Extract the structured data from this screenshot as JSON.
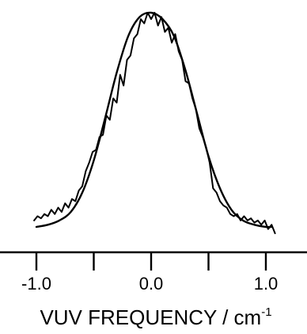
{
  "chart_data": {
    "type": "line",
    "title": "",
    "xlabel": "VUV FREQUENCY / cm",
    "xlabel_superscript": "-1",
    "ylabel": "",
    "xlim": [
      -1.15,
      1.15
    ],
    "ylim": [
      0,
      1.05
    ],
    "xticks": [
      -1.0,
      -0.5,
      0.0,
      0.5,
      1.0
    ],
    "xtick_labels": [
      "-1.0",
      "",
      "0.0",
      "",
      "1.0"
    ],
    "grid": false,
    "legend": "none",
    "series": [
      {
        "style": "smooth",
        "x": [
          -1.0,
          -0.9,
          -0.8,
          -0.7,
          -0.6,
          -0.5,
          -0.4,
          -0.3,
          -0.2,
          -0.1,
          0.0,
          0.1,
          0.2,
          0.3,
          0.4,
          0.5,
          0.6,
          0.7,
          0.8,
          0.9,
          1.0,
          1.05
        ],
        "y": [
          0.0,
          0.01,
          0.03,
          0.07,
          0.16,
          0.31,
          0.51,
          0.72,
          0.89,
          0.98,
          1.0,
          0.97,
          0.89,
          0.73,
          0.53,
          0.33,
          0.18,
          0.08,
          0.03,
          0.01,
          0.0,
          0.0
        ]
      },
      {
        "style": "noisy",
        "x": [
          -1.02,
          -0.99,
          -0.96,
          -0.93,
          -0.9,
          -0.87,
          -0.84,
          -0.81,
          -0.78,
          -0.75,
          -0.72,
          -0.69,
          -0.66,
          -0.63,
          -0.6,
          -0.57,
          -0.54,
          -0.51,
          -0.48,
          -0.45,
          -0.42,
          -0.39,
          -0.36,
          -0.33,
          -0.3,
          -0.27,
          -0.24,
          -0.21,
          -0.18,
          -0.15,
          -0.12,
          -0.09,
          -0.06,
          -0.03,
          0.0,
          0.03,
          0.06,
          0.09,
          0.12,
          0.15,
          0.18,
          0.21,
          0.24,
          0.27,
          0.3,
          0.33,
          0.36,
          0.39,
          0.42,
          0.45,
          0.48,
          0.51,
          0.54,
          0.57,
          0.6,
          0.63,
          0.66,
          0.69,
          0.72,
          0.75,
          0.78,
          0.81,
          0.84,
          0.87,
          0.9,
          0.93,
          0.96,
          0.99,
          1.02,
          1.05,
          1.08
        ],
        "y": [
          0.03,
          0.05,
          0.04,
          0.06,
          0.05,
          0.08,
          0.06,
          0.09,
          0.07,
          0.11,
          0.09,
          0.13,
          0.12,
          0.17,
          0.19,
          0.26,
          0.3,
          0.35,
          0.36,
          0.42,
          0.43,
          0.52,
          0.5,
          0.6,
          0.58,
          0.71,
          0.66,
          0.78,
          0.8,
          0.88,
          0.9,
          0.97,
          0.95,
          1.0,
          0.97,
          1.0,
          0.94,
          0.98,
          0.91,
          0.93,
          0.86,
          0.9,
          0.82,
          0.78,
          0.68,
          0.67,
          0.6,
          0.55,
          0.46,
          0.42,
          0.37,
          0.3,
          0.18,
          0.16,
          0.12,
          0.1,
          0.09,
          0.06,
          0.05,
          0.06,
          0.03,
          0.05,
          0.03,
          0.04,
          0.02,
          0.03,
          0.01,
          0.03,
          -0.01,
          0.01,
          -0.03
        ]
      }
    ],
    "colors": {
      "line": "#000000",
      "background": "#ffffff"
    }
  }
}
